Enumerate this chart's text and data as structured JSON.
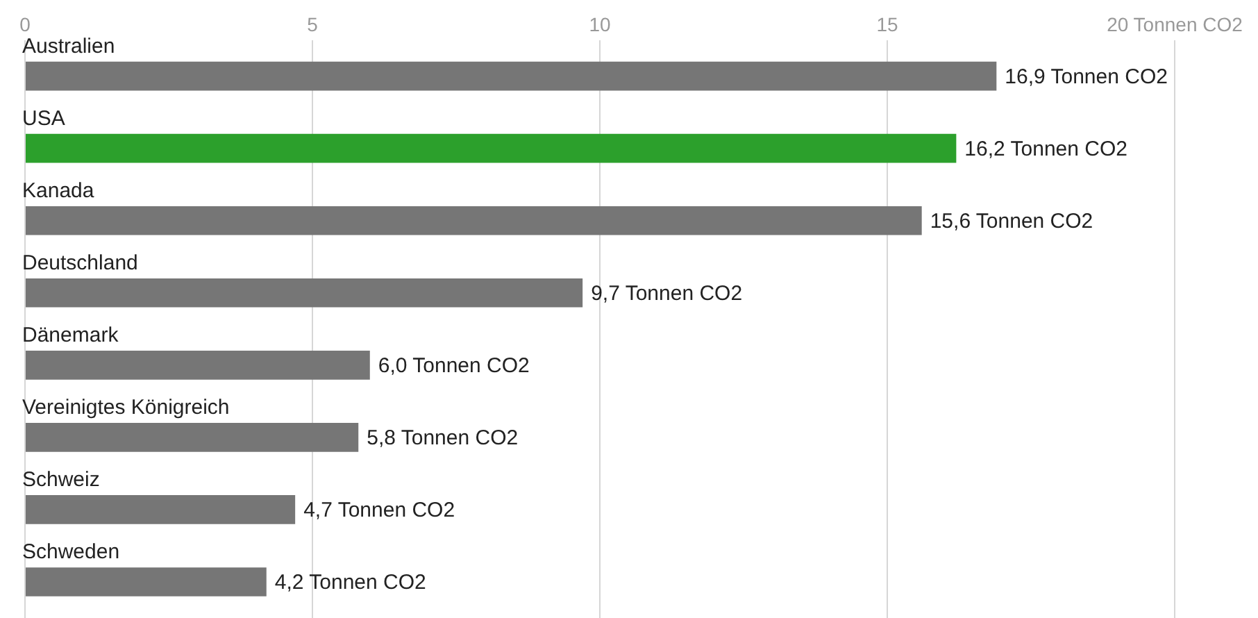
{
  "chart_data": {
    "type": "bar",
    "orientation": "horizontal",
    "categories": [
      "Australien",
      "USA",
      "Kanada",
      "Deutschland",
      "Dänemark",
      "Vereinigtes Königreich",
      "Schweiz",
      "Schweden"
    ],
    "values": [
      16.9,
      16.2,
      15.6,
      9.7,
      6.0,
      5.8,
      4.7,
      4.2
    ],
    "colors": [
      "#767676",
      "#2ca02c",
      "#767676",
      "#767676",
      "#767676",
      "#767676",
      "#767676",
      "#767676"
    ],
    "value_labels": [
      "16,9 Tonnen CO2",
      "16,2 Tonnen CO2",
      "15,6 Tonnen CO2",
      "9,7 Tonnen CO2",
      "6,0 Tonnen CO2",
      "5,8 Tonnen CO2",
      "4,7 Tonnen CO2",
      "4,2 Tonnen CO2"
    ],
    "xlim": [
      0,
      20
    ],
    "xticks": [
      0,
      5,
      10,
      15,
      {
        "value": 20,
        "label": "20 Tonnen CO2"
      }
    ],
    "grid": "x",
    "legend": false
  }
}
